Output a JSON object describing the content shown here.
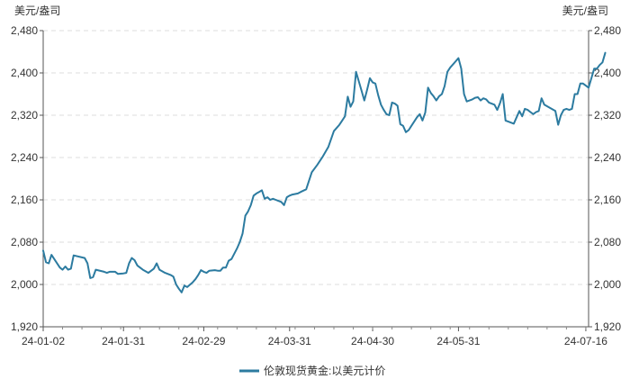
{
  "chart_data": {
    "type": "line",
    "y_unit_left": "美元/盎司",
    "y_unit_right": "美元/盎司",
    "ylim": [
      1920,
      2480
    ],
    "yticks": [
      1920,
      2000,
      2080,
      2160,
      2240,
      2320,
      2400,
      2480
    ],
    "yticks_labels": [
      "1,920",
      "2,000",
      "2,080",
      "2,160",
      "2,240",
      "2,320",
      "2,400",
      "2,480"
    ],
    "xlim": [
      "2024-01-02",
      "2024-07-17"
    ],
    "xticks": [
      "2024-01-02",
      "2024-01-31",
      "2024-02-29",
      "2024-03-31",
      "2024-04-30",
      "2024-05-31",
      "2024-07-16"
    ],
    "xticks_labels": [
      "24-01-02",
      "24-01-31",
      "24-02-29",
      "24-03-31",
      "24-04-30",
      "24-05-31",
      "24-07-16"
    ],
    "grid": true,
    "legend_position": "bottom-center",
    "series": [
      {
        "name": "伦敦现货黄金:以美元计价",
        "color": "#2c7ba0",
        "points": [
          [
            "2024-01-02",
            2064
          ],
          [
            "2024-01-03",
            2042
          ],
          [
            "2024-01-04",
            2040
          ],
          [
            "2024-01-05",
            2056
          ],
          [
            "2024-01-08",
            2032
          ],
          [
            "2024-01-09",
            2028
          ],
          [
            "2024-01-10",
            2034
          ],
          [
            "2024-01-11",
            2028
          ],
          [
            "2024-01-12",
            2030
          ],
          [
            "2024-01-13",
            2055
          ],
          [
            "2024-01-17",
            2050
          ],
          [
            "2024-01-18",
            2040
          ],
          [
            "2024-01-19",
            2012
          ],
          [
            "2024-01-20",
            2014
          ],
          [
            "2024-01-21",
            2028
          ],
          [
            "2024-01-24",
            2024
          ],
          [
            "2024-01-25",
            2022
          ],
          [
            "2024-01-26",
            2024
          ],
          [
            "2024-01-28",
            2024
          ],
          [
            "2024-01-29",
            2020
          ],
          [
            "2024-01-31",
            2021
          ],
          [
            "2024-02-01",
            2022
          ],
          [
            "2024-02-02",
            2040
          ],
          [
            "2024-02-03",
            2050
          ],
          [
            "2024-02-04",
            2046
          ],
          [
            "2024-02-05",
            2036
          ],
          [
            "2024-02-07",
            2028
          ],
          [
            "2024-02-09",
            2022
          ],
          [
            "2024-02-11",
            2030
          ],
          [
            "2024-02-12",
            2040
          ],
          [
            "2024-02-13",
            2028
          ],
          [
            "2024-02-15",
            2022
          ],
          [
            "2024-02-17",
            2018
          ],
          [
            "2024-02-18",
            2015
          ],
          [
            "2024-02-19",
            2000
          ],
          [
            "2024-02-20",
            1992
          ],
          [
            "2024-02-21",
            1985
          ],
          [
            "2024-02-22",
            1998
          ],
          [
            "2024-02-23",
            1995
          ],
          [
            "2024-02-25",
            2004
          ],
          [
            "2024-02-26",
            2010
          ],
          [
            "2024-02-27",
            2018
          ],
          [
            "2024-02-28",
            2027
          ],
          [
            "2024-02-29",
            2024
          ],
          [
            "2024-03-01",
            2022
          ],
          [
            "2024-03-02",
            2026
          ],
          [
            "2024-03-04",
            2027
          ],
          [
            "2024-03-05",
            2026
          ],
          [
            "2024-03-06",
            2026
          ],
          [
            "2024-03-07",
            2032
          ],
          [
            "2024-03-08",
            2032
          ],
          [
            "2024-03-09",
            2045
          ],
          [
            "2024-03-10",
            2048
          ],
          [
            "2024-03-12",
            2068
          ],
          [
            "2024-03-13",
            2080
          ],
          [
            "2024-03-14",
            2096
          ],
          [
            "2024-03-15",
            2130
          ],
          [
            "2024-03-16",
            2138
          ],
          [
            "2024-03-17",
            2150
          ],
          [
            "2024-03-18",
            2168
          ],
          [
            "2024-03-19",
            2172
          ],
          [
            "2024-03-20",
            2175
          ],
          [
            "2024-03-21",
            2178
          ],
          [
            "2024-03-22",
            2162
          ],
          [
            "2024-03-23",
            2165
          ],
          [
            "2024-03-24",
            2160
          ],
          [
            "2024-03-25",
            2162
          ],
          [
            "2024-03-26",
            2160
          ],
          [
            "2024-03-27",
            2158
          ],
          [
            "2024-03-28",
            2156
          ],
          [
            "2024-03-29",
            2150
          ],
          [
            "2024-03-30",
            2165
          ],
          [
            "2024-03-31",
            2168
          ],
          [
            "2024-04-01",
            2170
          ],
          [
            "2024-04-03",
            2172
          ],
          [
            "2024-04-04",
            2175
          ],
          [
            "2024-04-06",
            2180
          ],
          [
            "2024-04-08",
            2212
          ],
          [
            "2024-04-10",
            2226
          ],
          [
            "2024-04-12",
            2242
          ],
          [
            "2024-04-14",
            2260
          ],
          [
            "2024-04-16",
            2290
          ],
          [
            "2024-04-17",
            2296
          ],
          [
            "2024-04-18",
            2302
          ],
          [
            "2024-04-19",
            2310
          ],
          [
            "2024-04-20",
            2318
          ],
          [
            "2024-04-21",
            2355
          ],
          [
            "2024-04-22",
            2336
          ],
          [
            "2024-04-23",
            2346
          ],
          [
            "2024-04-24",
            2402
          ],
          [
            "2024-04-25",
            2384
          ],
          [
            "2024-04-26",
            2366
          ],
          [
            "2024-04-27",
            2348
          ],
          [
            "2024-04-28",
            2368
          ],
          [
            "2024-04-29",
            2390
          ],
          [
            "2024-04-30",
            2382
          ],
          [
            "2024-05-01",
            2380
          ],
          [
            "2024-05-02",
            2358
          ],
          [
            "2024-05-03",
            2340
          ],
          [
            "2024-05-04",
            2330
          ],
          [
            "2024-05-05",
            2322
          ],
          [
            "2024-05-06",
            2320
          ],
          [
            "2024-05-07",
            2344
          ],
          [
            "2024-05-08",
            2342
          ],
          [
            "2024-05-09",
            2338
          ],
          [
            "2024-05-10",
            2303
          ],
          [
            "2024-05-11",
            2300
          ],
          [
            "2024-05-12",
            2288
          ],
          [
            "2024-05-13",
            2292
          ],
          [
            "2024-05-14",
            2300
          ],
          [
            "2024-05-15",
            2308
          ],
          [
            "2024-05-16",
            2316
          ],
          [
            "2024-05-17",
            2322
          ],
          [
            "2024-05-18",
            2310
          ],
          [
            "2024-05-19",
            2325
          ],
          [
            "2024-05-20",
            2372
          ],
          [
            "2024-05-21",
            2362
          ],
          [
            "2024-05-22",
            2356
          ],
          [
            "2024-05-23",
            2348
          ],
          [
            "2024-05-24",
            2356
          ],
          [
            "2024-05-25",
            2360
          ],
          [
            "2024-05-26",
            2375
          ],
          [
            "2024-05-27",
            2402
          ],
          [
            "2024-05-28",
            2410
          ],
          [
            "2024-05-29",
            2416
          ],
          [
            "2024-05-30",
            2422
          ],
          [
            "2024-05-31",
            2428
          ],
          [
            "2024-06-01",
            2408
          ],
          [
            "2024-06-02",
            2360
          ],
          [
            "2024-06-03",
            2346
          ],
          [
            "2024-06-04",
            2348
          ],
          [
            "2024-06-05",
            2350
          ],
          [
            "2024-06-06",
            2353
          ],
          [
            "2024-06-07",
            2354
          ],
          [
            "2024-06-08",
            2348
          ],
          [
            "2024-06-09",
            2352
          ],
          [
            "2024-06-10",
            2350
          ],
          [
            "2024-06-11",
            2344
          ],
          [
            "2024-06-13",
            2340
          ],
          [
            "2024-06-14",
            2330
          ],
          [
            "2024-06-15",
            2343
          ],
          [
            "2024-06-16",
            2360
          ],
          [
            "2024-06-17",
            2310
          ],
          [
            "2024-06-18",
            2308
          ],
          [
            "2024-06-20",
            2304
          ],
          [
            "2024-06-21",
            2316
          ],
          [
            "2024-06-22",
            2328
          ],
          [
            "2024-06-23",
            2318
          ],
          [
            "2024-06-24",
            2332
          ],
          [
            "2024-06-25",
            2330
          ],
          [
            "2024-06-26",
            2326
          ],
          [
            "2024-06-27",
            2322
          ],
          [
            "2024-06-28",
            2326
          ],
          [
            "2024-06-29",
            2328
          ],
          [
            "2024-06-30",
            2352
          ],
          [
            "2024-07-01",
            2340
          ],
          [
            "2024-07-03",
            2334
          ],
          [
            "2024-07-05",
            2328
          ],
          [
            "2024-07-06",
            2302
          ],
          [
            "2024-07-07",
            2320
          ],
          [
            "2024-07-08",
            2330
          ],
          [
            "2024-07-09",
            2332
          ],
          [
            "2024-07-10",
            2330
          ],
          [
            "2024-07-11",
            2332
          ],
          [
            "2024-07-12",
            2360
          ],
          [
            "2024-07-13",
            2360
          ],
          [
            "2024-07-14",
            2380
          ],
          [
            "2024-07-15",
            2380
          ],
          [
            "2024-07-16",
            2376
          ],
          [
            "2024-07-17",
            2372
          ],
          [
            "2024-07-18",
            2390
          ],
          [
            "2024-07-19",
            2408
          ],
          [
            "2024-07-20",
            2408
          ],
          [
            "2024-07-21",
            2415
          ],
          [
            "2024-07-22",
            2420
          ],
          [
            "2024-07-23",
            2438
          ]
        ]
      }
    ]
  }
}
